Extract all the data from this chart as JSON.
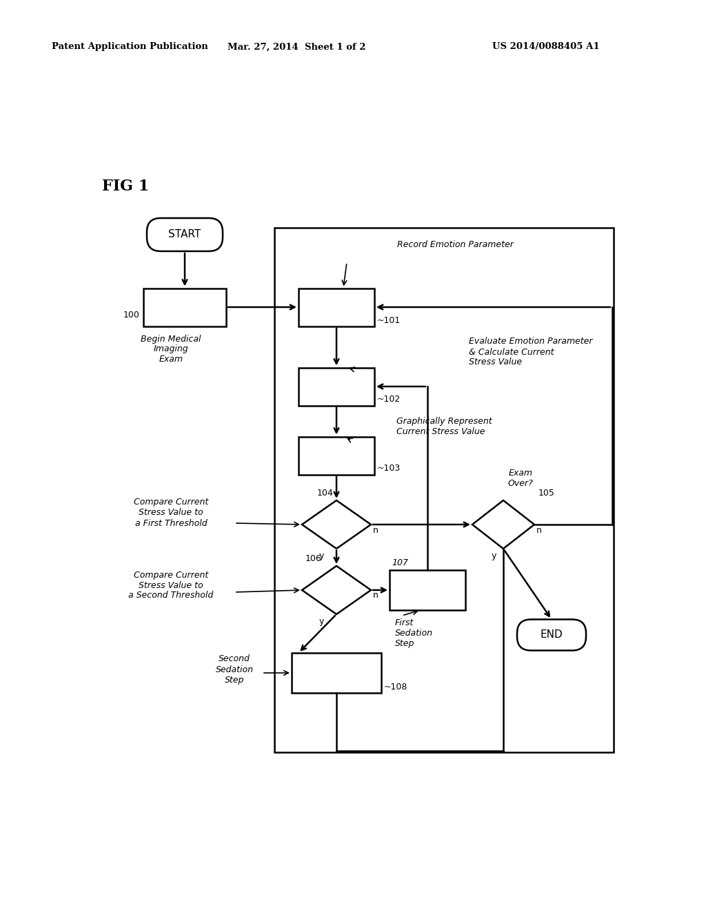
{
  "background_color": "#ffffff",
  "header_left": "Patent Application Publication",
  "header_center": "Mar. 27, 2014  Sheet 1 of 2",
  "header_right": "US 2014/0088405 A1"
}
